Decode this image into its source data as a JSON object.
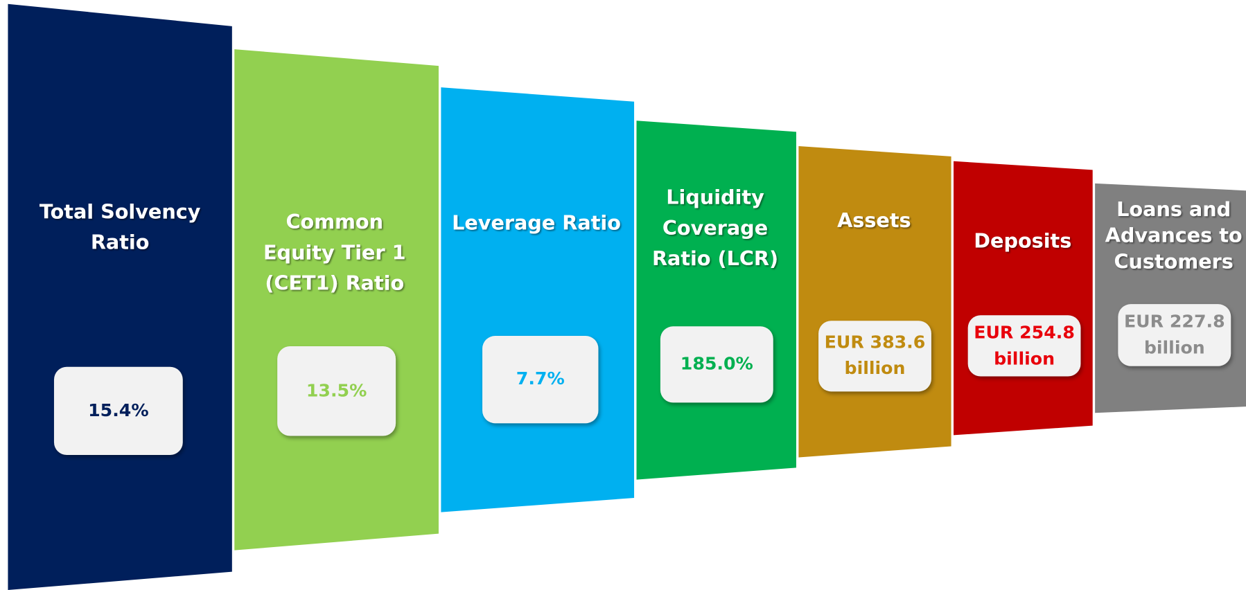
{
  "panels": [
    {
      "title": [
        "Total Solvency",
        "Ratio"
      ],
      "value": [
        "15.4%"
      ],
      "color": "#001f5b",
      "value_color": "#001f5b"
    },
    {
      "title": [
        "Common",
        "Equity Tier 1",
        "(CET1) Ratio"
      ],
      "value": [
        "13.5%"
      ],
      "color": "#92d050",
      "value_color": "#92d050"
    },
    {
      "title": [
        "Leverage Ratio"
      ],
      "value": [
        "7.7%"
      ],
      "color": "#00b0f0",
      "value_color": "#00b0f0"
    },
    {
      "title": [
        "Liquidity",
        "Coverage",
        "Ratio (LCR)"
      ],
      "value": [
        "185.0%"
      ],
      "color": "#00b050",
      "value_color": "#00b050"
    },
    {
      "title": [
        "Assets"
      ],
      "value": [
        "EUR 383.6",
        "billion"
      ],
      "color": "#c08b10",
      "value_color": "#c08b10"
    },
    {
      "title": [
        "Deposits"
      ],
      "value": [
        "EUR 254.8",
        "billion"
      ],
      "color": "#c00000",
      "value_color": "#e8000b"
    },
    {
      "title": [
        "Loans and",
        "Advances to",
        "Customers"
      ],
      "value": [
        "EUR 227.8",
        "billion"
      ],
      "color": "#808080",
      "value_color": "#8c8c8c"
    }
  ]
}
